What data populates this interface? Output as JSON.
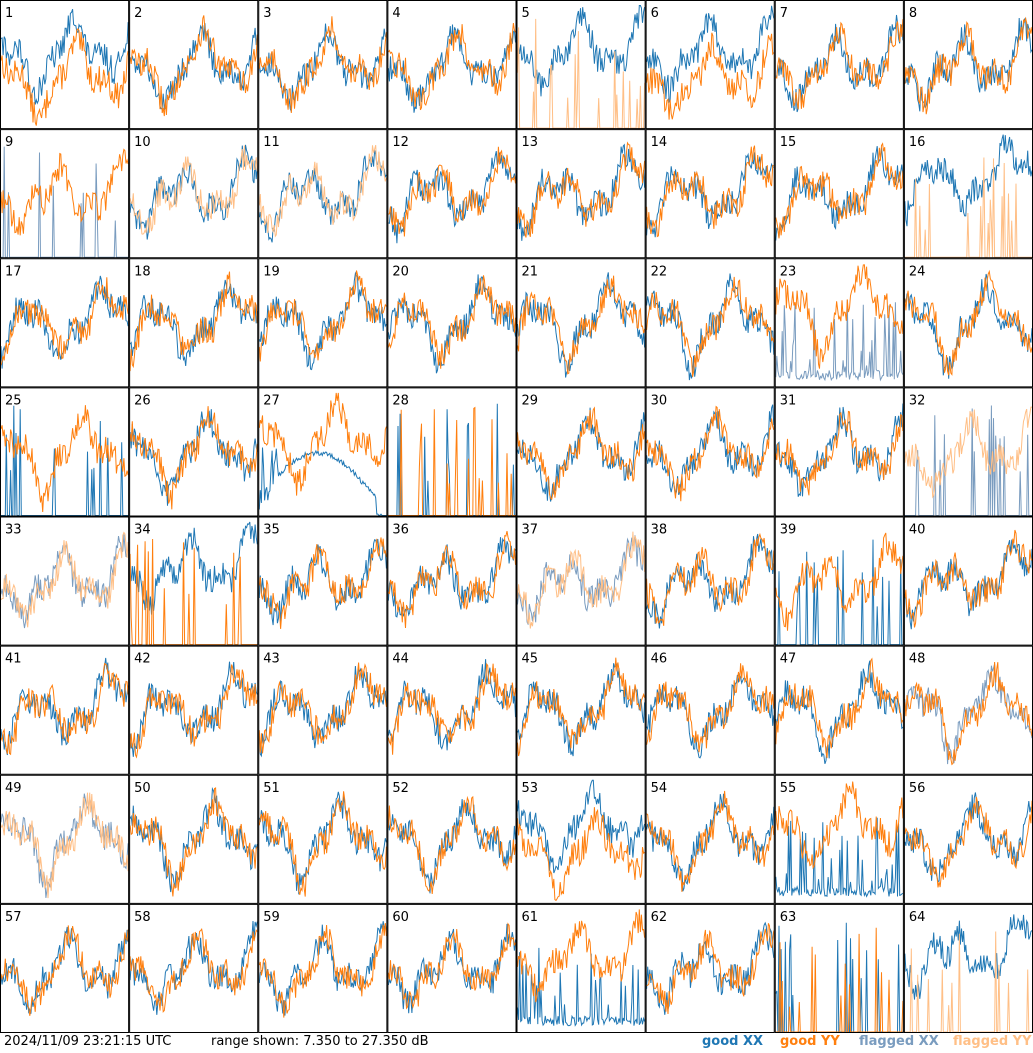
{
  "chart_data": {
    "type": "line",
    "timestamp": "2024/11/09 23:21:15 UTC",
    "range_text": "range shown: 7.350 to 27.350 dB",
    "ylim": [
      7.35,
      27.35
    ],
    "grid": {
      "rows": 8,
      "cols": 8
    },
    "colors": {
      "good_xx": "#1f77b4",
      "good_yy": "#ff7f0e",
      "flagged_xx": "#7a9cbf",
      "flagged_yy": "#ffbf86"
    },
    "legend": [
      {
        "key": "good_xx",
        "label": "good XX"
      },
      {
        "key": "good_yy",
        "label": "good YY"
      },
      {
        "key": "flagged_xx",
        "label": "flagged XX"
      },
      {
        "key": "flagged_yy",
        "label": "flagged YY"
      }
    ],
    "panels": [
      {
        "id": "1",
        "xx": "good",
        "yy": "good",
        "mode": "xx_high"
      },
      {
        "id": "2",
        "xx": "good",
        "yy": "good",
        "mode": "normal"
      },
      {
        "id": "3",
        "xx": "good",
        "yy": "good",
        "mode": "normal"
      },
      {
        "id": "4",
        "xx": "good",
        "yy": "good",
        "mode": "normal"
      },
      {
        "id": "5",
        "xx": "good",
        "yy": "flagged",
        "mode": "yy_spiky"
      },
      {
        "id": "6",
        "xx": "good",
        "yy": "good",
        "mode": "xx_high"
      },
      {
        "id": "7",
        "xx": "good",
        "yy": "good",
        "mode": "normal"
      },
      {
        "id": "8",
        "xx": "good",
        "yy": "good",
        "mode": "normal"
      },
      {
        "id": "9",
        "xx": "flagged",
        "yy": "good",
        "mode": "xx_spiky"
      },
      {
        "id": "10",
        "xx": "good",
        "yy": "flagged",
        "mode": "normal"
      },
      {
        "id": "11",
        "xx": "good",
        "yy": "flagged",
        "mode": "normal"
      },
      {
        "id": "12",
        "xx": "good",
        "yy": "good",
        "mode": "normal"
      },
      {
        "id": "13",
        "xx": "good",
        "yy": "good",
        "mode": "normal"
      },
      {
        "id": "14",
        "xx": "good",
        "yy": "good",
        "mode": "normal"
      },
      {
        "id": "15",
        "xx": "good",
        "yy": "good",
        "mode": "normal"
      },
      {
        "id": "16",
        "xx": "good",
        "yy": "flagged",
        "mode": "yy_spiky"
      },
      {
        "id": "17",
        "xx": "good",
        "yy": "good",
        "mode": "normal"
      },
      {
        "id": "18",
        "xx": "good",
        "yy": "good",
        "mode": "normal"
      },
      {
        "id": "19",
        "xx": "good",
        "yy": "good",
        "mode": "normal"
      },
      {
        "id": "20",
        "xx": "good",
        "yy": "good",
        "mode": "normal"
      },
      {
        "id": "21",
        "xx": "good",
        "yy": "good",
        "mode": "normal"
      },
      {
        "id": "22",
        "xx": "good",
        "yy": "good",
        "mode": "normal"
      },
      {
        "id": "23",
        "xx": "flagged",
        "yy": "good",
        "mode": "xx_low"
      },
      {
        "id": "24",
        "xx": "good",
        "yy": "good",
        "mode": "normal"
      },
      {
        "id": "25",
        "xx": "good",
        "yy": "good",
        "mode": "xx_spiky"
      },
      {
        "id": "26",
        "xx": "good",
        "yy": "good",
        "mode": "normal"
      },
      {
        "id": "27",
        "xx": "good",
        "yy": "good",
        "mode": "xx_arc"
      },
      {
        "id": "28",
        "xx": "good",
        "yy": "good",
        "mode": "both_spiky"
      },
      {
        "id": "29",
        "xx": "good",
        "yy": "good",
        "mode": "normal"
      },
      {
        "id": "30",
        "xx": "good",
        "yy": "good",
        "mode": "normal"
      },
      {
        "id": "31",
        "xx": "good",
        "yy": "good",
        "mode": "normal"
      },
      {
        "id": "32",
        "xx": "flagged",
        "yy": "flagged",
        "mode": "xx_spiky"
      },
      {
        "id": "33",
        "xx": "flagged",
        "yy": "flagged",
        "mode": "normal"
      },
      {
        "id": "34",
        "xx": "good",
        "yy": "good",
        "mode": "yy_spiky"
      },
      {
        "id": "35",
        "xx": "good",
        "yy": "good",
        "mode": "normal"
      },
      {
        "id": "36",
        "xx": "good",
        "yy": "good",
        "mode": "normal"
      },
      {
        "id": "37",
        "xx": "flagged",
        "yy": "flagged",
        "mode": "normal"
      },
      {
        "id": "38",
        "xx": "good",
        "yy": "good",
        "mode": "normal"
      },
      {
        "id": "39",
        "xx": "good",
        "yy": "good",
        "mode": "xx_spiky"
      },
      {
        "id": "40",
        "xx": "good",
        "yy": "good",
        "mode": "normal"
      },
      {
        "id": "41",
        "xx": "good",
        "yy": "good",
        "mode": "normal"
      },
      {
        "id": "42",
        "xx": "good",
        "yy": "good",
        "mode": "normal"
      },
      {
        "id": "43",
        "xx": "good",
        "yy": "good",
        "mode": "normal"
      },
      {
        "id": "44",
        "xx": "good",
        "yy": "good",
        "mode": "normal"
      },
      {
        "id": "45",
        "xx": "good",
        "yy": "good",
        "mode": "normal"
      },
      {
        "id": "46",
        "xx": "good",
        "yy": "good",
        "mode": "normal"
      },
      {
        "id": "47",
        "xx": "good",
        "yy": "good",
        "mode": "normal"
      },
      {
        "id": "48",
        "xx": "flagged",
        "yy": "good",
        "mode": "normal"
      },
      {
        "id": "49",
        "xx": "flagged",
        "yy": "flagged",
        "mode": "normal"
      },
      {
        "id": "50",
        "xx": "good",
        "yy": "good",
        "mode": "normal"
      },
      {
        "id": "51",
        "xx": "good",
        "yy": "good",
        "mode": "normal"
      },
      {
        "id": "52",
        "xx": "good",
        "yy": "good",
        "mode": "normal"
      },
      {
        "id": "53",
        "xx": "good",
        "yy": "good",
        "mode": "xx_high"
      },
      {
        "id": "54",
        "xx": "good",
        "yy": "good",
        "mode": "normal"
      },
      {
        "id": "55",
        "xx": "good",
        "yy": "good",
        "mode": "xx_low"
      },
      {
        "id": "56",
        "xx": "good",
        "yy": "good",
        "mode": "normal"
      },
      {
        "id": "57",
        "xx": "good",
        "yy": "good",
        "mode": "normal"
      },
      {
        "id": "58",
        "xx": "good",
        "yy": "good",
        "mode": "normal"
      },
      {
        "id": "59",
        "xx": "good",
        "yy": "good",
        "mode": "normal"
      },
      {
        "id": "60",
        "xx": "good",
        "yy": "good",
        "mode": "normal"
      },
      {
        "id": "61",
        "xx": "good",
        "yy": "good",
        "mode": "xx_low"
      },
      {
        "id": "62",
        "xx": "good",
        "yy": "good",
        "mode": "normal"
      },
      {
        "id": "63",
        "xx": "good",
        "yy": "good",
        "mode": "both_spiky"
      },
      {
        "id": "64",
        "xx": "good",
        "yy": "flagged",
        "mode": "yy_spiky"
      }
    ]
  }
}
